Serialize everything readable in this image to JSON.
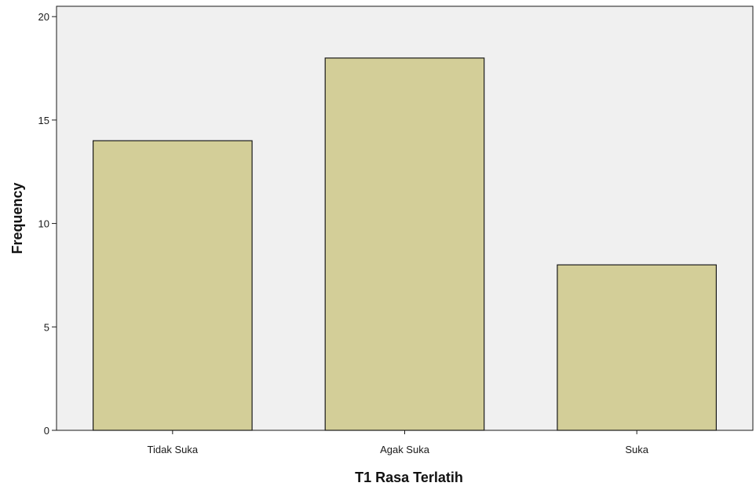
{
  "chart_data": {
    "type": "bar",
    "title": "",
    "xlabel": "T1 Rasa Terlatih",
    "ylabel": "Frequency",
    "categories": [
      "Tidak Suka",
      "Agak Suka",
      "Suka"
    ],
    "values": [
      14,
      18,
      8
    ],
    "ylim": [
      0,
      20.5
    ],
    "yticks": [
      0,
      5,
      10,
      15,
      20
    ],
    "grid": false,
    "legend": "none",
    "colors": {
      "bar_fill": "#d3ce98",
      "bar_stroke": "#1a1a1a",
      "plot_background": "#f0f0f0",
      "axis": "#1a1a1a"
    }
  }
}
